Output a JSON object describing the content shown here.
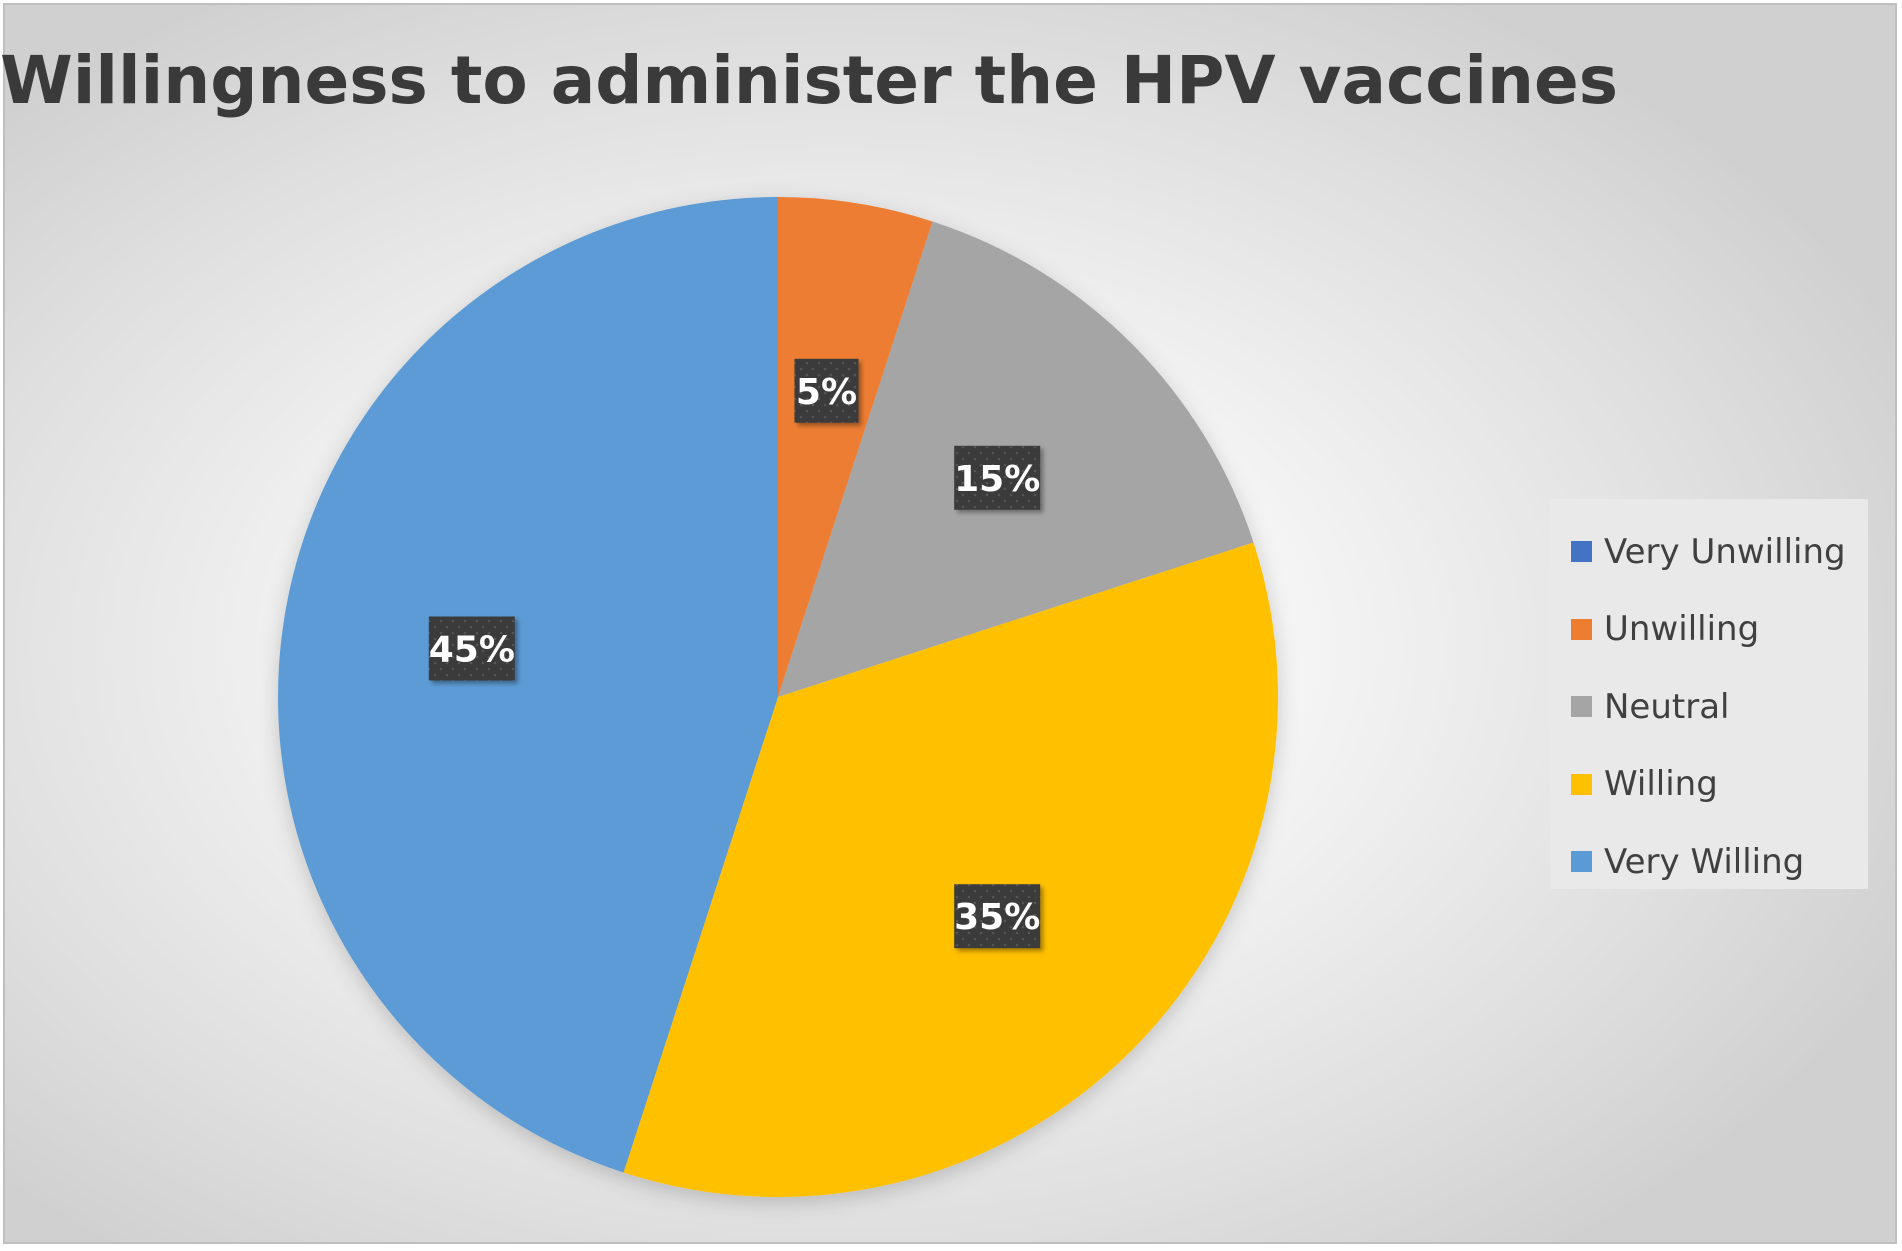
{
  "chart_data": {
    "type": "pie",
    "title": "Willingness to administer the HPV vaccines",
    "categories": [
      "Very Unwilling",
      "Unwilling",
      "Neutral",
      "Willing",
      "Very Willing"
    ],
    "values": [
      0,
      5,
      15,
      35,
      45
    ],
    "value_labels": [
      "",
      "5%",
      "15%",
      "35%",
      "45%"
    ],
    "colors": [
      "#4472c4",
      "#ed7d31",
      "#a5a5a5",
      "#ffc000",
      "#5b9bd5"
    ],
    "legend_position": "right",
    "start_angle": "top, clockwise"
  }
}
